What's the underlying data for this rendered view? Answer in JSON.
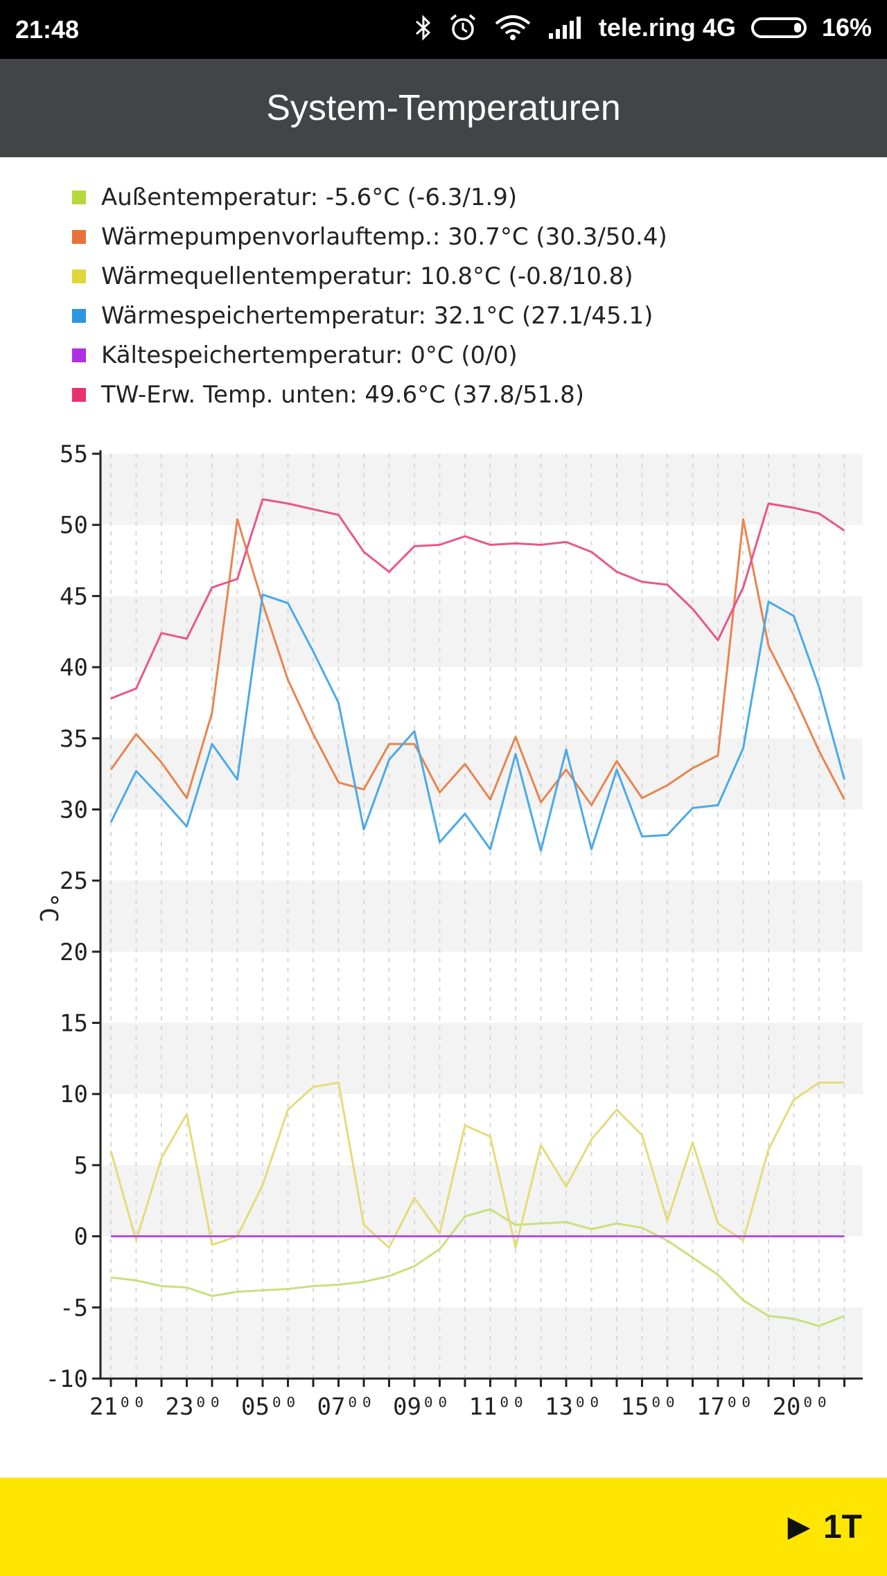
{
  "status_bar": {
    "time": "21:48",
    "carrier": "tele.ring 4G",
    "battery_percent": "16%",
    "battery_level": 0.16,
    "icons": [
      "bluetooth-icon",
      "alarm-icon",
      "wifi-icon",
      "signal-icon",
      "battery-icon"
    ]
  },
  "app_bar": {
    "title": "System-Temperaturen"
  },
  "legend": [
    {
      "label": "Außentemperatur:  -5.6°C (-6.3/1.9)",
      "color": "#b5d93a"
    },
    {
      "label": "Wärmepumpenvorlauftemp.: 30.7°C (30.3/50.4)",
      "color": "#e8733a"
    },
    {
      "label": "Wärmequellentemperatur:  10.8°C (-0.8/10.8)",
      "color": "#e0d63a"
    },
    {
      "label": "Wärmespeichertemperatur:  32.1°C (27.1/45.1)",
      "color": "#2a97e0"
    },
    {
      "label": "Kältespeichertemperatur:  0°C (0/0)",
      "color": "#b02ee6"
    },
    {
      "label": "TW-Erw. Temp. unten: 49.6°C (37.8/51.8)",
      "color": "#e8316f"
    }
  ],
  "chart_data": {
    "type": "line",
    "ylabel": "°C",
    "ylim": [
      -10,
      55
    ],
    "yticks": [
      -10,
      -5,
      0,
      5,
      10,
      15,
      20,
      25,
      30,
      35,
      40,
      45,
      50,
      55
    ],
    "xtick_labels": [
      "21⁰⁰",
      "23⁰⁰",
      "05⁰⁰",
      "07⁰⁰",
      "09⁰⁰",
      "11⁰⁰",
      "13⁰⁰",
      "15⁰⁰",
      "17⁰⁰",
      "20⁰⁰"
    ],
    "xtick_label_index": [
      0,
      3,
      6,
      9,
      12,
      15,
      18,
      21,
      24,
      27
    ],
    "point_count": 30,
    "grid": true,
    "series": [
      {
        "name": "Außentemperatur",
        "color": "#c9e07a",
        "values": [
          -2.9,
          -3.1,
          -3.5,
          -3.6,
          -4.2,
          -3.9,
          -3.8,
          -3.7,
          -3.5,
          -3.4,
          -3.2,
          -2.8,
          -2.1,
          -0.9,
          1.4,
          1.9,
          0.8,
          0.9,
          1.0,
          0.5,
          0.9,
          0.6,
          -0.3,
          -1.5,
          -2.7,
          -4.5,
          -5.6,
          -5.8,
          -6.3,
          -5.6
        ]
      },
      {
        "name": "Wärmepumpenvorlauftemp.",
        "color": "#e8844e",
        "values": [
          32.8,
          35.3,
          33.3,
          30.8,
          36.8,
          50.4,
          44.5,
          39.1,
          35.3,
          31.9,
          31.4,
          34.6,
          34.6,
          31.2,
          33.2,
          30.7,
          35.1,
          30.5,
          32.8,
          30.3,
          33.4,
          30.8,
          31.7,
          32.9,
          33.8,
          50.4,
          41.5,
          38.0,
          34.1,
          30.7
        ]
      },
      {
        "name": "Wärmequellentemperatur",
        "color": "#e3dc7a",
        "values": [
          6.0,
          -0.3,
          5.5,
          8.6,
          -0.6,
          0.0,
          3.6,
          8.9,
          10.5,
          10.8,
          0.8,
          -0.8,
          2.7,
          0.2,
          7.8,
          7.0,
          -0.8,
          6.4,
          3.5,
          6.8,
          8.9,
          7.1,
          1.1,
          6.6,
          0.9,
          -0.3,
          6.1,
          9.6,
          10.8,
          10.8
        ]
      },
      {
        "name": "Wärmespeichertemperatur",
        "color": "#4aaae6",
        "values": [
          29.1,
          32.7,
          30.8,
          28.8,
          34.6,
          32.1,
          45.1,
          44.5,
          41.1,
          37.5,
          28.6,
          33.5,
          35.5,
          27.7,
          29.7,
          27.2,
          33.9,
          27.1,
          34.2,
          27.2,
          32.8,
          28.1,
          28.2,
          30.1,
          30.3,
          34.3,
          44.6,
          43.6,
          38.6,
          32.1
        ]
      },
      {
        "name": "Kältespeichertemperatur",
        "color": "#b24be3",
        "values": [
          0,
          0,
          0,
          0,
          0,
          0,
          0,
          0,
          0,
          0,
          0,
          0,
          0,
          0,
          0,
          0,
          0,
          0,
          0,
          0,
          0,
          0,
          0,
          0,
          0,
          0,
          0,
          0,
          0,
          0
        ]
      },
      {
        "name": "TW-Erw. Temp. unten",
        "color": "#e8568a",
        "values": [
          37.8,
          38.5,
          42.4,
          42.0,
          45.6,
          46.2,
          51.8,
          51.5,
          51.1,
          50.7,
          48.1,
          46.7,
          48.5,
          48.6,
          49.2,
          48.6,
          48.7,
          48.6,
          48.8,
          48.1,
          46.7,
          46.0,
          45.8,
          44.1,
          41.9,
          45.6,
          51.5,
          51.2,
          50.8,
          49.6
        ]
      }
    ]
  },
  "bottom_bar": {
    "period_label": "1T"
  }
}
